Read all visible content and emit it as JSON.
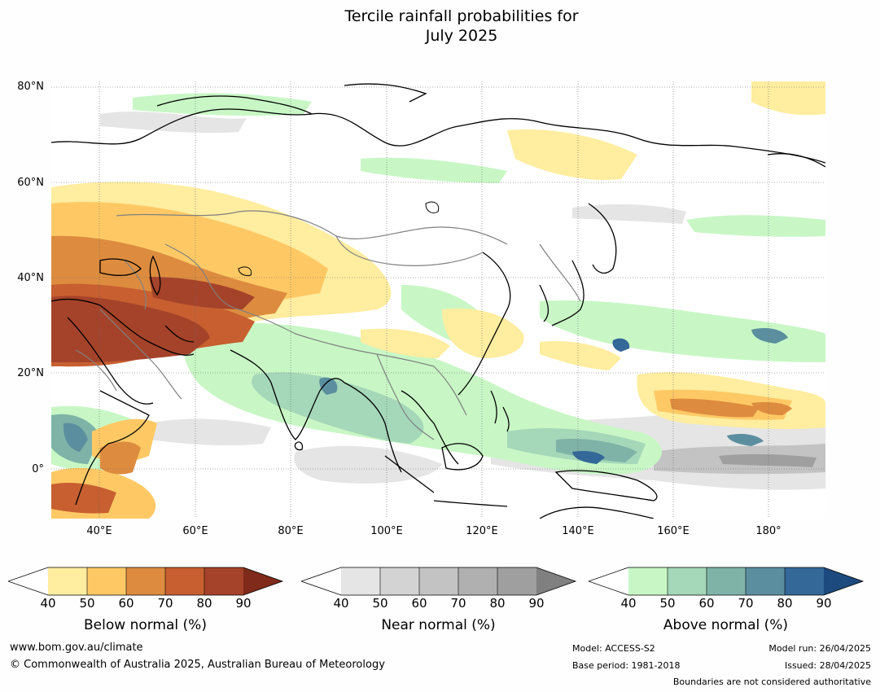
{
  "title": {
    "line1": "Tercile rainfall probabilities for",
    "line2": "July 2025"
  },
  "map": {
    "lat_labels": [
      "80°N",
      "60°N",
      "40°N",
      "20°N",
      "0°"
    ],
    "lon_labels": [
      "40°E",
      "60°E",
      "80°E",
      "100°E",
      "120°E",
      "140°E",
      "160°E",
      "180°"
    ]
  },
  "legends": [
    {
      "label": "Below normal (%)",
      "ticks": [
        "40",
        "50",
        "60",
        "70",
        "80",
        "90"
      ],
      "colors": [
        "#ffffff",
        "#ffeda0",
        "#fec965",
        "#dd8c3f",
        "#c75f30",
        "#a5432a",
        "#7f2a1a"
      ]
    },
    {
      "label": "Near normal (%)",
      "ticks": [
        "40",
        "50",
        "60",
        "70",
        "80",
        "90"
      ],
      "colors": [
        "#ffffff",
        "#e5e5e5",
        "#d3d3d3",
        "#c3c3c3",
        "#b0b0b0",
        "#9f9f9f",
        "#808080"
      ]
    },
    {
      "label": "Above normal (%)",
      "ticks": [
        "40",
        "50",
        "60",
        "70",
        "80",
        "90"
      ],
      "colors": [
        "#ffffff",
        "#c8f7c5",
        "#a5d7b9",
        "#7fb3a8",
        "#5b8f9f",
        "#346898",
        "#1c4a7e"
      ]
    }
  ],
  "footer": {
    "url": "www.bom.gov.au/climate",
    "copyright": "© Commonwealth of Australia 2025, Australian Bureau of Meteorology",
    "model": "Model: ACCESS-S2",
    "base_period": "Base period: 1981-2018",
    "model_run": "Model run: 26/04/2025",
    "issued": "Issued: 28/04/2025",
    "disclaimer": "Boundaries are not considered authoritative"
  }
}
